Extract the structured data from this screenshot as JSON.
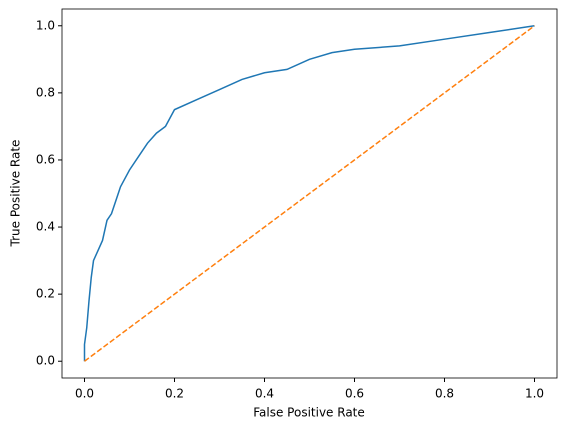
{
  "chart_data": {
    "type": "line",
    "x_label": "False Positive Rate",
    "y_label": "True Positive Rate",
    "xlim": [
      -0.05,
      1.05
    ],
    "ylim": [
      -0.05,
      1.05
    ],
    "xticks": [
      {
        "value": 0,
        "label": "0.0"
      },
      0.2,
      0.4,
      0.6,
      0.8,
      {
        "value": 1,
        "label": "1.0"
      }
    ],
    "yticks": [
      {
        "value": 0,
        "label": "0.0"
      },
      0.2,
      0.4,
      0.6,
      0.8,
      {
        "value": 1,
        "label": "1.0"
      }
    ],
    "grid": false,
    "series": [
      {
        "color": "#1f77b4",
        "linestyle": "solid",
        "x": [
          0,
          0,
          0.005,
          0.01,
          0.015,
          0.02,
          0.03,
          0.04,
          0.05,
          0.06,
          0.07,
          0.08,
          0.1,
          0.12,
          0.14,
          0.16,
          0.18,
          0.2,
          0.25,
          0.3,
          0.35,
          0.4,
          0.45,
          0.5,
          0.55,
          0.6,
          0.7,
          0.8,
          0.9,
          1
        ],
        "values": [
          0,
          0.05,
          0.1,
          0.18,
          0.25,
          0.3,
          0.33,
          0.36,
          0.42,
          0.44,
          0.48,
          0.52,
          0.57,
          0.61,
          0.65,
          0.68,
          0.7,
          0.75,
          0.78,
          0.81,
          0.84,
          0.86,
          0.87,
          0.9,
          0.92,
          0.93,
          0.94,
          0.96,
          0.98,
          1
        ]
      },
      {
        "color": "#ff7f0e",
        "linestyle": "dashed",
        "x": [
          0,
          1
        ],
        "values": [
          0,
          1
        ]
      }
    ]
  }
}
